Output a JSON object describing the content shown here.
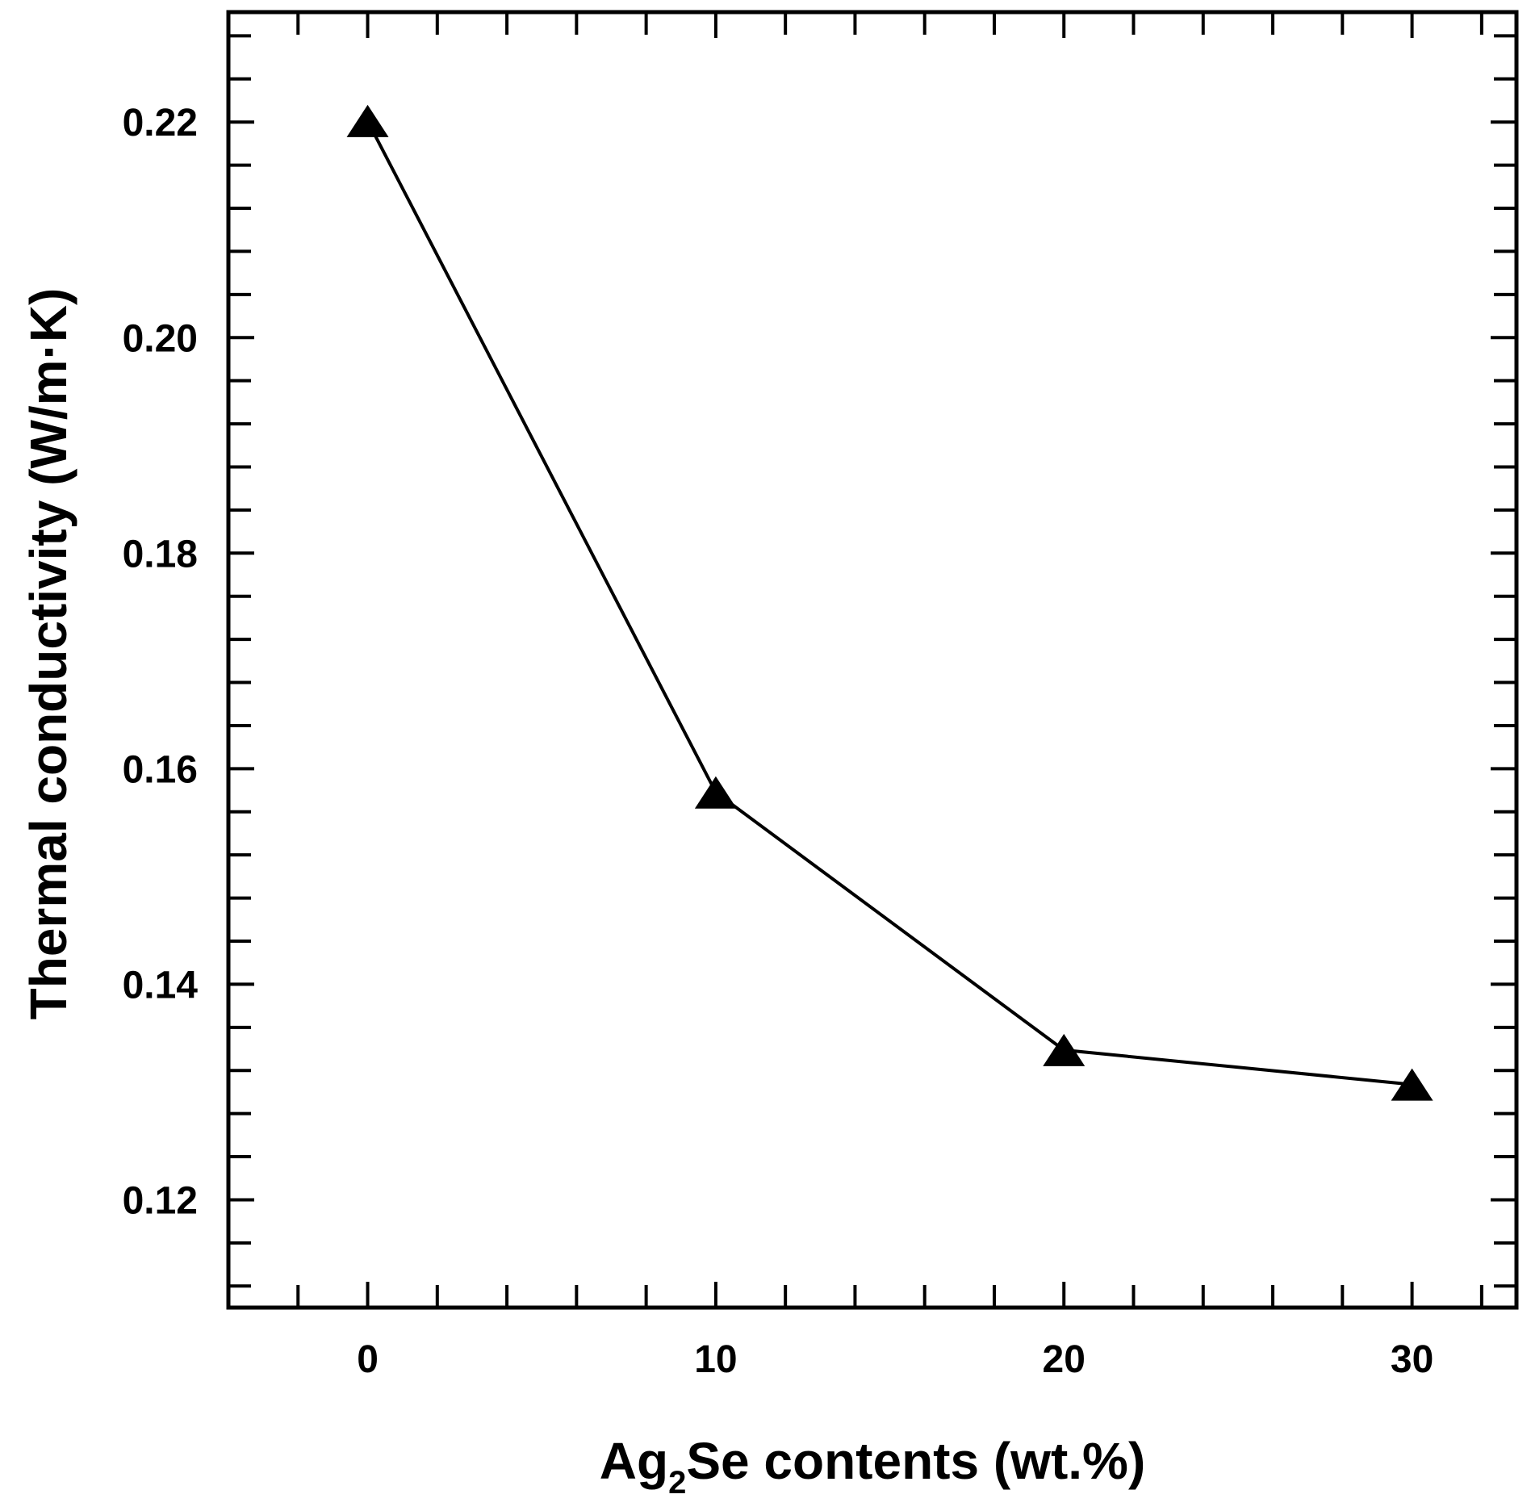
{
  "chart_data": {
    "type": "line",
    "title": "",
    "xlabel": {
      "main": "Ag",
      "sub": "2",
      "rest": "Se contents (wt.%)"
    },
    "ylabel": "Thermal conductivity (W/m·K)",
    "xlim": [
      -4,
      33
    ],
    "ylim": [
      0.11,
      0.2302
    ],
    "x_ticks": [
      {
        "value": 0,
        "label": "0"
      },
      {
        "value": 10,
        "label": "10"
      },
      {
        "value": 20,
        "label": "20"
      },
      {
        "value": 30,
        "label": "30"
      }
    ],
    "y_ticks": [
      {
        "value": 0.12,
        "label": "0.12"
      },
      {
        "value": 0.14,
        "label": "0.14"
      },
      {
        "value": 0.16,
        "label": "0.16"
      },
      {
        "value": 0.18,
        "label": "0.18"
      },
      {
        "value": 0.2,
        "label": "0.20"
      },
      {
        "value": 0.22,
        "label": "0.22"
      }
    ],
    "x_minor_step": 2,
    "y_minor_step": 0.004,
    "grid": false,
    "marker": "triangle",
    "line_color": "#000000",
    "series": [
      {
        "x": [
          0,
          10,
          20,
          30
        ],
        "y": [
          0.2201,
          0.1578,
          0.1339,
          0.1307
        ]
      }
    ]
  }
}
